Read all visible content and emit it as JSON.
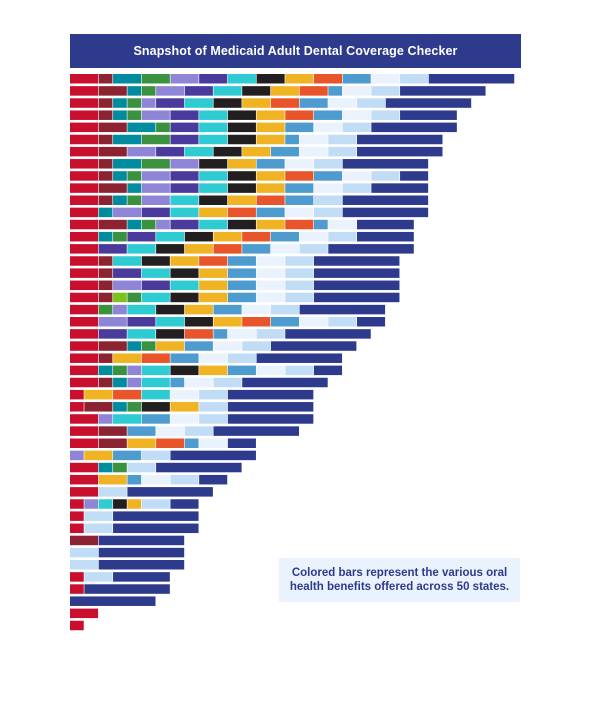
{
  "chart_data": {
    "type": "bar",
    "orientation": "horizontal-stacked",
    "title": "Snapshot of Medicaid Adult Dental Coverage Checker",
    "annotation": "Colored bars represent the various oral health benefits offered across 50 states.",
    "xlabel": "",
    "ylabel": "",
    "grid": false,
    "legend": "none",
    "unit_note": "segment widths in relative benefit units",
    "colors": {
      "R": "#c8102e",
      "D": "#8b2332",
      "T": "#008c9e",
      "G": "#3a9140",
      "M": "#7ac21e",
      "L": "#8f85d6",
      "P": "#4a3a9b",
      "C": "#2ecbd3",
      "K": "#231f20",
      "Y": "#f0b323",
      "O": "#e9552b",
      "B": "#4e9ccf",
      "W": "#eaf3fd",
      "S": "#c1ddf6",
      "N": "#2e3a8c"
    },
    "rows": [
      [
        [
          "R",
          2
        ],
        [
          "D",
          1
        ],
        [
          "T",
          2
        ],
        [
          "G",
          2
        ],
        [
          "L",
          2
        ],
        [
          "P",
          2
        ],
        [
          "C",
          2
        ],
        [
          "K",
          2
        ],
        [
          "Y",
          2
        ],
        [
          "O",
          2
        ],
        [
          "B",
          2
        ],
        [
          "W",
          2
        ],
        [
          "S",
          2
        ],
        [
          "N",
          6
        ]
      ],
      [
        [
          "R",
          2
        ],
        [
          "D",
          2
        ],
        [
          "T",
          1
        ],
        [
          "G",
          1
        ],
        [
          "L",
          2
        ],
        [
          "P",
          2
        ],
        [
          "C",
          2
        ],
        [
          "K",
          2
        ],
        [
          "Y",
          2
        ],
        [
          "O",
          2
        ],
        [
          "B",
          1
        ],
        [
          "W",
          2
        ],
        [
          "S",
          2
        ],
        [
          "N",
          6
        ]
      ],
      [
        [
          "R",
          2
        ],
        [
          "D",
          1
        ],
        [
          "T",
          1
        ],
        [
          "G",
          1
        ],
        [
          "L",
          1
        ],
        [
          "P",
          2
        ],
        [
          "C",
          2
        ],
        [
          "K",
          2
        ],
        [
          "Y",
          2
        ],
        [
          "O",
          2
        ],
        [
          "B",
          2
        ],
        [
          "W",
          2
        ],
        [
          "S",
          2
        ],
        [
          "N",
          6
        ]
      ],
      [
        [
          "R",
          2
        ],
        [
          "D",
          1
        ],
        [
          "T",
          1
        ],
        [
          "G",
          1
        ],
        [
          "L",
          2
        ],
        [
          "P",
          2
        ],
        [
          "C",
          2
        ],
        [
          "K",
          2
        ],
        [
          "Y",
          2
        ],
        [
          "O",
          2
        ],
        [
          "B",
          2
        ],
        [
          "W",
          2
        ],
        [
          "S",
          2
        ],
        [
          "N",
          4
        ]
      ],
      [
        [
          "R",
          2
        ],
        [
          "D",
          2
        ],
        [
          "T",
          2
        ],
        [
          "G",
          1
        ],
        [
          "P",
          2
        ],
        [
          "C",
          2
        ],
        [
          "K",
          2
        ],
        [
          "Y",
          2
        ],
        [
          "B",
          2
        ],
        [
          "W",
          2
        ],
        [
          "S",
          2
        ],
        [
          "N",
          6
        ]
      ],
      [
        [
          "R",
          2
        ],
        [
          "D",
          1
        ],
        [
          "T",
          2
        ],
        [
          "G",
          2
        ],
        [
          "P",
          2
        ],
        [
          "C",
          2
        ],
        [
          "K",
          2
        ],
        [
          "Y",
          2
        ],
        [
          "B",
          1
        ],
        [
          "W",
          2
        ],
        [
          "S",
          2
        ],
        [
          "N",
          6
        ]
      ],
      [
        [
          "R",
          2
        ],
        [
          "D",
          2
        ],
        [
          "L",
          2
        ],
        [
          "P",
          2
        ],
        [
          "C",
          2
        ],
        [
          "K",
          2
        ],
        [
          "Y",
          2
        ],
        [
          "B",
          2
        ],
        [
          "W",
          2
        ],
        [
          "S",
          2
        ],
        [
          "N",
          6
        ]
      ],
      [
        [
          "R",
          2
        ],
        [
          "D",
          1
        ],
        [
          "T",
          2
        ],
        [
          "G",
          2
        ],
        [
          "L",
          2
        ],
        [
          "K",
          2
        ],
        [
          "Y",
          2
        ],
        [
          "B",
          2
        ],
        [
          "W",
          2
        ],
        [
          "S",
          2
        ],
        [
          "N",
          6
        ]
      ],
      [
        [
          "R",
          2
        ],
        [
          "D",
          1
        ],
        [
          "T",
          1
        ],
        [
          "G",
          1
        ],
        [
          "L",
          2
        ],
        [
          "P",
          2
        ],
        [
          "C",
          2
        ],
        [
          "K",
          2
        ],
        [
          "Y",
          2
        ],
        [
          "O",
          2
        ],
        [
          "B",
          2
        ],
        [
          "W",
          2
        ],
        [
          "S",
          2
        ],
        [
          "N",
          2
        ]
      ],
      [
        [
          "R",
          2
        ],
        [
          "D",
          2
        ],
        [
          "T",
          1
        ],
        [
          "L",
          2
        ],
        [
          "P",
          2
        ],
        [
          "C",
          2
        ],
        [
          "K",
          2
        ],
        [
          "Y",
          2
        ],
        [
          "B",
          2
        ],
        [
          "W",
          2
        ],
        [
          "S",
          2
        ],
        [
          "N",
          4
        ]
      ],
      [
        [
          "R",
          2
        ],
        [
          "D",
          1
        ],
        [
          "T",
          1
        ],
        [
          "G",
          1
        ],
        [
          "L",
          2
        ],
        [
          "C",
          2
        ],
        [
          "K",
          2
        ],
        [
          "Y",
          2
        ],
        [
          "O",
          2
        ],
        [
          "B",
          2
        ],
        [
          "S",
          2
        ],
        [
          "N",
          6
        ]
      ],
      [
        [
          "R",
          2
        ],
        [
          "T",
          1
        ],
        [
          "L",
          2
        ],
        [
          "P",
          2
        ],
        [
          "C",
          2
        ],
        [
          "Y",
          2
        ],
        [
          "O",
          2
        ],
        [
          "B",
          2
        ],
        [
          "W",
          2
        ],
        [
          "S",
          2
        ],
        [
          "N",
          6
        ]
      ],
      [
        [
          "R",
          2
        ],
        [
          "D",
          2
        ],
        [
          "T",
          1
        ],
        [
          "G",
          1
        ],
        [
          "L",
          1
        ],
        [
          "P",
          2
        ],
        [
          "C",
          2
        ],
        [
          "K",
          2
        ],
        [
          "Y",
          2
        ],
        [
          "O",
          2
        ],
        [
          "B",
          1
        ],
        [
          "W",
          2
        ],
        [
          "N",
          4
        ]
      ],
      [
        [
          "R",
          2
        ],
        [
          "T",
          1
        ],
        [
          "G",
          1
        ],
        [
          "P",
          2
        ],
        [
          "C",
          2
        ],
        [
          "K",
          2
        ],
        [
          "Y",
          2
        ],
        [
          "O",
          2
        ],
        [
          "B",
          2
        ],
        [
          "W",
          2
        ],
        [
          "S",
          2
        ],
        [
          "N",
          4
        ]
      ],
      [
        [
          "R",
          2
        ],
        [
          "P",
          2
        ],
        [
          "C",
          2
        ],
        [
          "K",
          2
        ],
        [
          "Y",
          2
        ],
        [
          "O",
          2
        ],
        [
          "B",
          2
        ],
        [
          "W",
          2
        ],
        [
          "S",
          2
        ],
        [
          "N",
          6
        ]
      ],
      [
        [
          "R",
          2
        ],
        [
          "D",
          1
        ],
        [
          "C",
          2
        ],
        [
          "K",
          2
        ],
        [
          "Y",
          2
        ],
        [
          "O",
          2
        ],
        [
          "B",
          2
        ],
        [
          "W",
          2
        ],
        [
          "S",
          2
        ],
        [
          "N",
          6
        ]
      ],
      [
        [
          "R",
          2
        ],
        [
          "D",
          1
        ],
        [
          "P",
          2
        ],
        [
          "C",
          2
        ],
        [
          "K",
          2
        ],
        [
          "Y",
          2
        ],
        [
          "B",
          2
        ],
        [
          "W",
          2
        ],
        [
          "S",
          2
        ],
        [
          "N",
          6
        ]
      ],
      [
        [
          "R",
          2
        ],
        [
          "D",
          1
        ],
        [
          "L",
          2
        ],
        [
          "P",
          2
        ],
        [
          "C",
          2
        ],
        [
          "Y",
          2
        ],
        [
          "B",
          2
        ],
        [
          "W",
          2
        ],
        [
          "S",
          2
        ],
        [
          "N",
          6
        ]
      ],
      [
        [
          "R",
          2
        ],
        [
          "D",
          1
        ],
        [
          "M",
          1
        ],
        [
          "G",
          1
        ],
        [
          "C",
          2
        ],
        [
          "K",
          2
        ],
        [
          "Y",
          2
        ],
        [
          "B",
          2
        ],
        [
          "W",
          2
        ],
        [
          "S",
          2
        ],
        [
          "N",
          6
        ]
      ],
      [
        [
          "R",
          2
        ],
        [
          "G",
          1
        ],
        [
          "L",
          1
        ],
        [
          "C",
          2
        ],
        [
          "K",
          2
        ],
        [
          "Y",
          2
        ],
        [
          "B",
          2
        ],
        [
          "W",
          2
        ],
        [
          "S",
          2
        ],
        [
          "N",
          6
        ]
      ],
      [
        [
          "R",
          2
        ],
        [
          "L",
          2
        ],
        [
          "P",
          2
        ],
        [
          "C",
          2
        ],
        [
          "K",
          2
        ],
        [
          "Y",
          2
        ],
        [
          "O",
          2
        ],
        [
          "B",
          2
        ],
        [
          "W",
          2
        ],
        [
          "S",
          2
        ],
        [
          "N",
          2
        ]
      ],
      [
        [
          "R",
          2
        ],
        [
          "P",
          2
        ],
        [
          "C",
          2
        ],
        [
          "K",
          2
        ],
        [
          "O",
          2
        ],
        [
          "B",
          1
        ],
        [
          "W",
          2
        ],
        [
          "S",
          2
        ],
        [
          "N",
          6
        ]
      ],
      [
        [
          "R",
          2
        ],
        [
          "D",
          2
        ],
        [
          "T",
          1
        ],
        [
          "G",
          1
        ],
        [
          "Y",
          2
        ],
        [
          "B",
          2
        ],
        [
          "W",
          2
        ],
        [
          "S",
          2
        ],
        [
          "N",
          6
        ]
      ],
      [
        [
          "R",
          2
        ],
        [
          "D",
          1
        ],
        [
          "Y",
          2
        ],
        [
          "O",
          2
        ],
        [
          "B",
          2
        ],
        [
          "W",
          2
        ],
        [
          "S",
          2
        ],
        [
          "N",
          6
        ]
      ],
      [
        [
          "R",
          2
        ],
        [
          "T",
          1
        ],
        [
          "G",
          1
        ],
        [
          "L",
          1
        ],
        [
          "C",
          2
        ],
        [
          "K",
          2
        ],
        [
          "Y",
          2
        ],
        [
          "B",
          2
        ],
        [
          "W",
          2
        ],
        [
          "S",
          2
        ],
        [
          "N",
          2
        ]
      ],
      [
        [
          "R",
          2
        ],
        [
          "D",
          1
        ],
        [
          "T",
          1
        ],
        [
          "L",
          1
        ],
        [
          "C",
          2
        ],
        [
          "B",
          1
        ],
        [
          "W",
          2
        ],
        [
          "S",
          2
        ],
        [
          "N",
          6
        ]
      ],
      [
        [
          "R",
          1
        ],
        [
          "Y",
          2
        ],
        [
          "O",
          2
        ],
        [
          "C",
          2
        ],
        [
          "W",
          2
        ],
        [
          "S",
          2
        ],
        [
          "N",
          6
        ]
      ],
      [
        [
          "R",
          1
        ],
        [
          "D",
          2
        ],
        [
          "T",
          1
        ],
        [
          "G",
          1
        ],
        [
          "K",
          2
        ],
        [
          "Y",
          2
        ],
        [
          "S",
          2
        ],
        [
          "N",
          6
        ]
      ],
      [
        [
          "R",
          2
        ],
        [
          "L",
          1
        ],
        [
          "C",
          2
        ],
        [
          "B",
          2
        ],
        [
          "W",
          2
        ],
        [
          "S",
          2
        ],
        [
          "N",
          6
        ]
      ],
      [
        [
          "R",
          2
        ],
        [
          "D",
          2
        ],
        [
          "B",
          2
        ],
        [
          "W",
          2
        ],
        [
          "S",
          2
        ],
        [
          "N",
          6
        ]
      ],
      [
        [
          "R",
          2
        ],
        [
          "D",
          2
        ],
        [
          "Y",
          2
        ],
        [
          "O",
          2
        ],
        [
          "B",
          1
        ],
        [
          "W",
          2
        ],
        [
          "N",
          2
        ]
      ],
      [
        [
          "L",
          1
        ],
        [
          "Y",
          2
        ],
        [
          "B",
          2
        ],
        [
          "S",
          2
        ],
        [
          "N",
          6
        ]
      ],
      [
        [
          "R",
          2
        ],
        [
          "T",
          1
        ],
        [
          "G",
          1
        ],
        [
          "S",
          2
        ],
        [
          "N",
          6
        ]
      ],
      [
        [
          "R",
          2
        ],
        [
          "Y",
          2
        ],
        [
          "B",
          1
        ],
        [
          "W",
          2
        ],
        [
          "S",
          2
        ],
        [
          "N",
          2
        ]
      ],
      [
        [
          "R",
          2
        ],
        [
          "S",
          2
        ],
        [
          "N",
          6
        ]
      ],
      [
        [
          "R",
          1
        ],
        [
          "L",
          1
        ],
        [
          "C",
          1
        ],
        [
          "K",
          1
        ],
        [
          "Y",
          1
        ],
        [
          "S",
          2
        ],
        [
          "N",
          2
        ]
      ],
      [
        [
          "R",
          1
        ],
        [
          "S",
          2
        ],
        [
          "N",
          6
        ]
      ],
      [
        [
          "R",
          1
        ],
        [
          "S",
          2
        ],
        [
          "N",
          6
        ]
      ],
      [
        [
          "D",
          2
        ],
        [
          "N",
          6
        ]
      ],
      [
        [
          "S",
          2
        ],
        [
          "N",
          6
        ]
      ],
      [
        [
          "S",
          2
        ],
        [
          "N",
          6
        ]
      ],
      [
        [
          "R",
          1
        ],
        [
          "S",
          2
        ],
        [
          "N",
          4
        ]
      ],
      [
        [
          "R",
          1
        ],
        [
          "N",
          6
        ]
      ],
      [
        [
          "N",
          6
        ]
      ],
      [
        [
          "R",
          2
        ]
      ],
      [
        [
          "R",
          1
        ]
      ]
    ]
  }
}
